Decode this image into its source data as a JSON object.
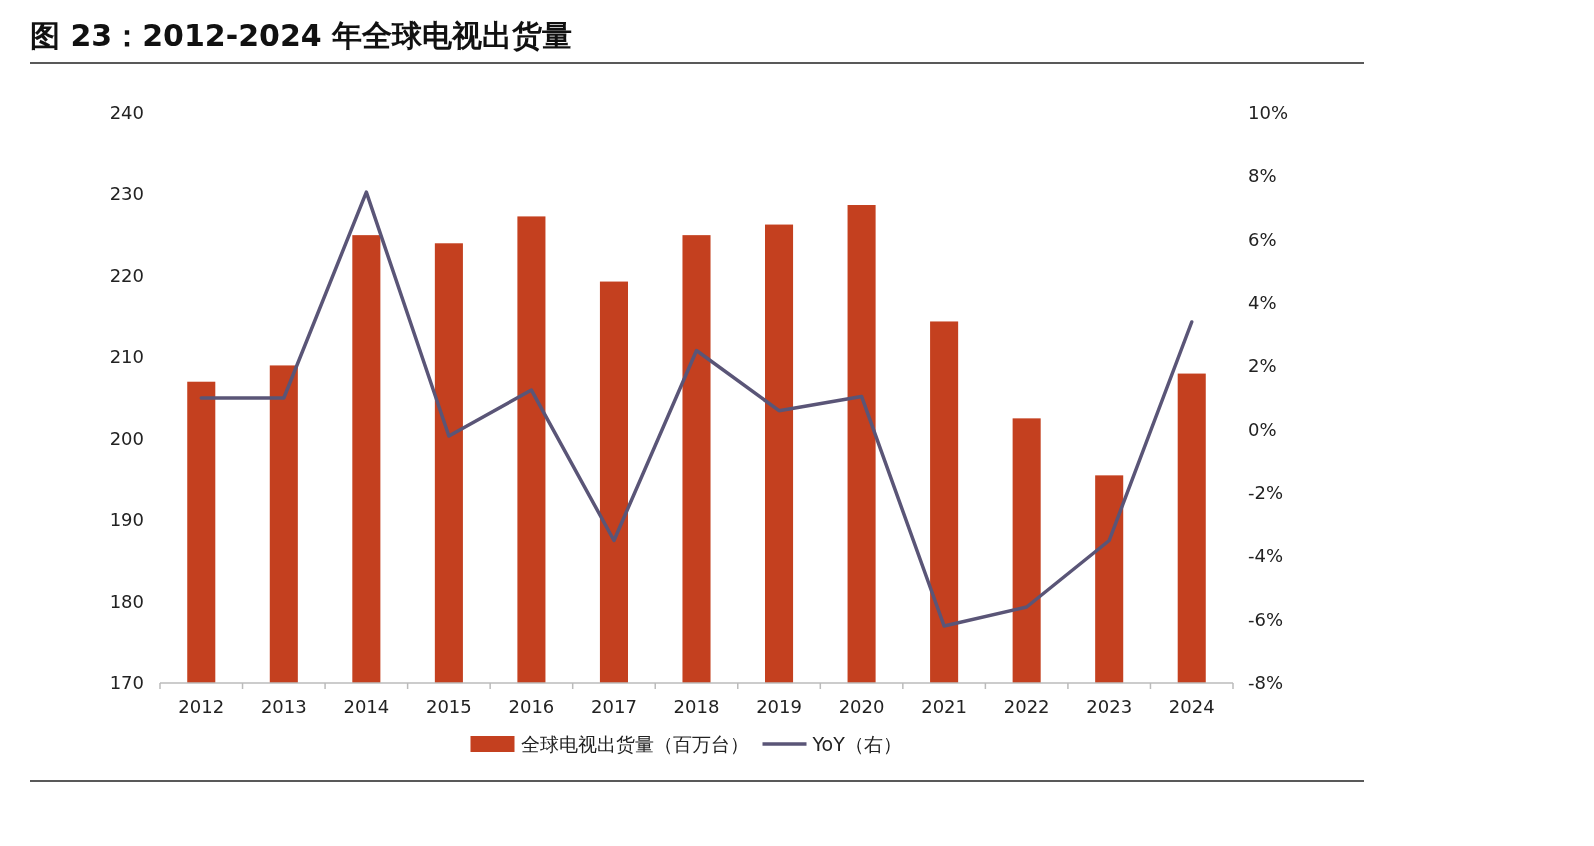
{
  "chart_data": {
    "type": "bar",
    "title": "图 23：2012-2024 年全球电视出货量",
    "categories": [
      "2012",
      "2013",
      "2014",
      "2015",
      "2016",
      "2017",
      "2018",
      "2019",
      "2020",
      "2021",
      "2022",
      "2023",
      "2024"
    ],
    "series": [
      {
        "name": "全球电视出货量（百万台）",
        "color": "#c4401f",
        "values": [
          207,
          209,
          225,
          224,
          227.3,
          219.3,
          225,
          226.3,
          228.7,
          214.4,
          202.5,
          195.5,
          208
        ]
      },
      {
        "name": "YoY（右）",
        "type": "line",
        "axis": "y2",
        "color": "#5a5577",
        "values": [
          1.0,
          1.0,
          7.5,
          -0.2,
          1.25,
          -3.5,
          2.5,
          0.6,
          1.05,
          -6.2,
          -5.6,
          -3.5,
          3.4
        ]
      }
    ],
    "ylim": [
      170,
      240
    ],
    "yticks": [
      170,
      180,
      190,
      200,
      210,
      220,
      230,
      240
    ],
    "y2lim": [
      -8,
      10
    ],
    "y2ticks": [
      {
        "value": -8,
        "label": "-8%"
      },
      {
        "value": -6,
        "label": "-6%"
      },
      {
        "value": -4,
        "label": "-4%"
      },
      {
        "value": -2,
        "label": "-2%"
      },
      {
        "value": 0,
        "label": "0%"
      },
      {
        "value": 2,
        "label": "2%"
      },
      {
        "value": 4,
        "label": "4%"
      },
      {
        "value": 6,
        "label": "6%"
      },
      {
        "value": 8,
        "label": "8%"
      },
      {
        "value": 10,
        "label": "10%"
      }
    ],
    "grid": false,
    "legend": "bottom",
    "marker": "none",
    "line_style": "solid"
  }
}
